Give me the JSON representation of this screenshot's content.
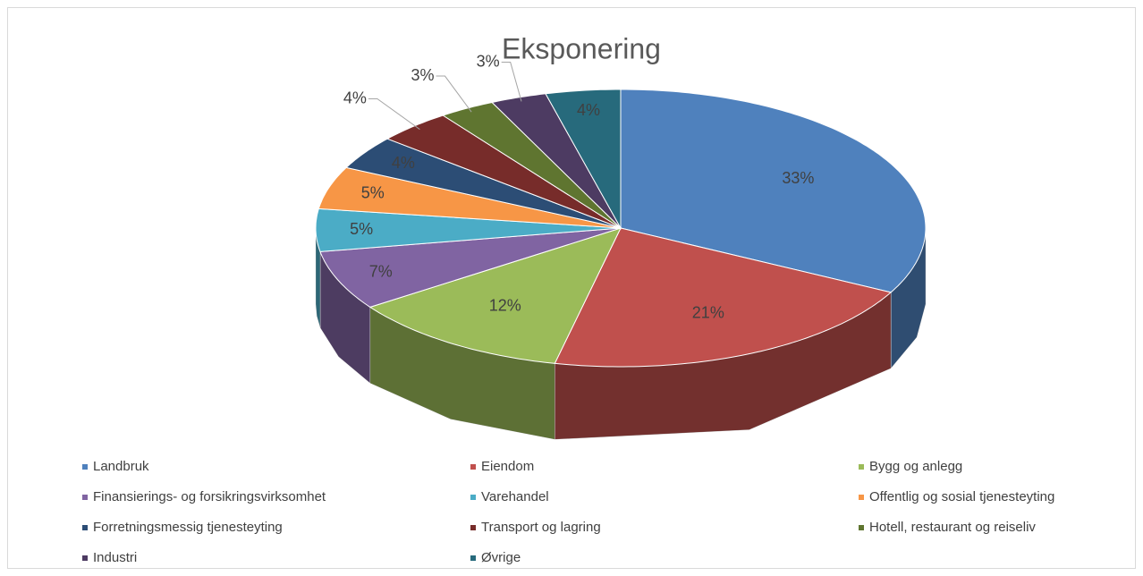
{
  "chart_data": {
    "type": "pie3d",
    "title": "Eksponering",
    "categories": [
      "Landbruk",
      "Eiendom",
      "Bygg og anlegg",
      "Finansierings- og forsikringsvirksomhet",
      "Varehandel",
      "Offentlig og sosial tjenesteyting",
      "Forretningsmessig tjenesteyting",
      "Transport og lagring",
      "Hotell, restaurant og reiseliv",
      "Industri",
      "Øvrige"
    ],
    "values": [
      33,
      21,
      12,
      7,
      5,
      5,
      4,
      4,
      3,
      3,
      4
    ],
    "value_labels": [
      "33%",
      "21%",
      "12%",
      "7%",
      "5%",
      "5%",
      "4%",
      "4%",
      "3%",
      "3%",
      "4%"
    ],
    "colors": [
      "#4f81bd",
      "#c0504d",
      "#9bbb59",
      "#8064a2",
      "#4bacc6",
      "#f79646",
      "#2c4d75",
      "#772c2a",
      "#5f7530",
      "#4d3b62",
      "#276a7c"
    ],
    "legend": "bottom"
  }
}
